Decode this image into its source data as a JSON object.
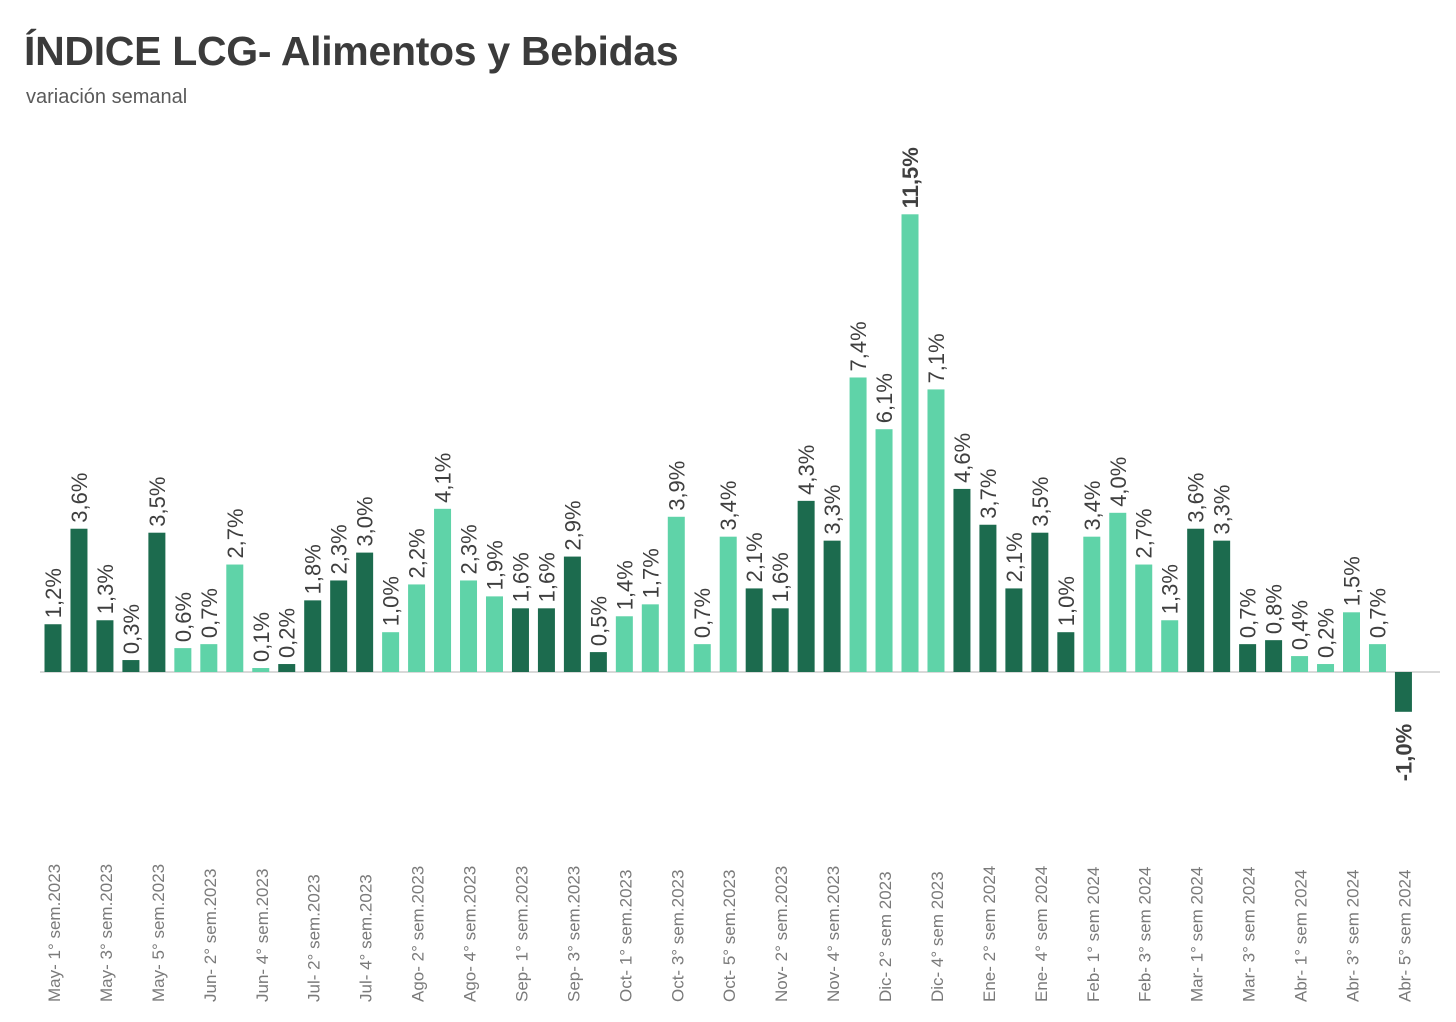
{
  "title": "ÍNDICE LCG- Alimentos y Bebidas",
  "subtitle": "variación semanal",
  "colors": {
    "dark": "#1c6b4e",
    "light": "#5fd3a8",
    "label": "#3f3f3f",
    "axis": "#d9d9d9",
    "tick": "#7a7a7a"
  },
  "chart_data": {
    "type": "bar",
    "title": "ÍNDICE LCG- Alimentos y Bebidas",
    "subtitle": "variación semanal",
    "ylim": [
      -1.0,
      11.5
    ],
    "grid": false,
    "legend": "none",
    "x_tick_labels": [
      "May- 1° sem.2023",
      "May- 3° sem.2023",
      "May- 5° sem.2023",
      "Jun- 2° sem.2023",
      "Jun- 4° sem.2023",
      "Jul- 2° sem.2023",
      "Jul- 4° sem.2023",
      "Ago- 2° sem.2023",
      "Ago- 4° sem.2023",
      "Sep- 1° sem.2023",
      "Sep- 3° sem.2023",
      "Oct- 1° sem.2023",
      "Oct- 3° sem.2023",
      "Oct- 5° sem.2023",
      "Nov- 2° sem.2023",
      "Nov- 4° sem.2023",
      "Dic- 2° sem 2023",
      "Dic- 4° sem 2023",
      "Ene- 2° sem 2024",
      "Ene- 4° sem 2024",
      "Feb- 1° sem 2024",
      "Feb- 3° sem 2024",
      "Mar- 1° sem 2024",
      "Mar- 3° sem 2024",
      "Abr- 1° sem 2024",
      "Abr- 3° sem 2024",
      "Abr- 5° sem 2024"
    ],
    "values": [
      1.2,
      3.6,
      1.3,
      0.3,
      3.5,
      0.6,
      0.7,
      2.7,
      0.1,
      0.2,
      1.8,
      2.3,
      3.0,
      1.0,
      2.2,
      4.1,
      2.3,
      1.9,
      1.6,
      1.6,
      2.9,
      0.5,
      1.4,
      1.7,
      3.9,
      0.7,
      3.4,
      2.1,
      1.6,
      4.3,
      3.3,
      7.4,
      6.1,
      11.5,
      7.1,
      4.6,
      3.7,
      2.1,
      3.5,
      1.0,
      3.4,
      4.0,
      2.7,
      1.3,
      3.6,
      3.3,
      0.7,
      0.8,
      0.4,
      0.2,
      1.5,
      0.7,
      -1.0
    ],
    "data_labels": [
      "1,2%",
      "3,6%",
      "1,3%",
      "0,3%",
      "3,5%",
      "0,6%",
      "0,7%",
      "2,7%",
      "0,1%",
      "0,2%",
      "1,8%",
      "2,3%",
      "3,0%",
      "1,0%",
      "2,2%",
      "4,1%",
      "2,3%",
      "1,9%",
      "1,6%",
      "1,6%",
      "2,9%",
      "0,5%",
      "1,4%",
      "1,7%",
      "3,9%",
      "0,7%",
      "3,4%",
      "2,1%",
      "1,6%",
      "4,3%",
      "3,3%",
      "7,4%",
      "6,1%",
      "11,5%",
      "7,1%",
      "4,6%",
      "3,7%",
      "2,1%",
      "3,5%",
      "1,0%",
      "3,4%",
      "4,0%",
      "2,7%",
      "1,3%",
      "3,6%",
      "3,3%",
      "0,7%",
      "0,8%",
      "0,4%",
      "0,2%",
      "1,5%",
      "0,7%",
      "-1,0%"
    ],
    "shades": [
      "dark",
      "dark",
      "dark",
      "dark",
      "dark",
      "light",
      "light",
      "light",
      "light",
      "dark",
      "dark",
      "dark",
      "dark",
      "light",
      "light",
      "light",
      "light",
      "light",
      "dark",
      "dark",
      "dark",
      "dark",
      "light",
      "light",
      "light",
      "light",
      "light",
      "dark",
      "dark",
      "dark",
      "dark",
      "light",
      "light",
      "light",
      "light",
      "dark",
      "dark",
      "dark",
      "dark",
      "dark",
      "light",
      "light",
      "light",
      "light",
      "dark",
      "dark",
      "dark",
      "dark",
      "light",
      "light",
      "light",
      "light",
      "dark"
    ]
  }
}
